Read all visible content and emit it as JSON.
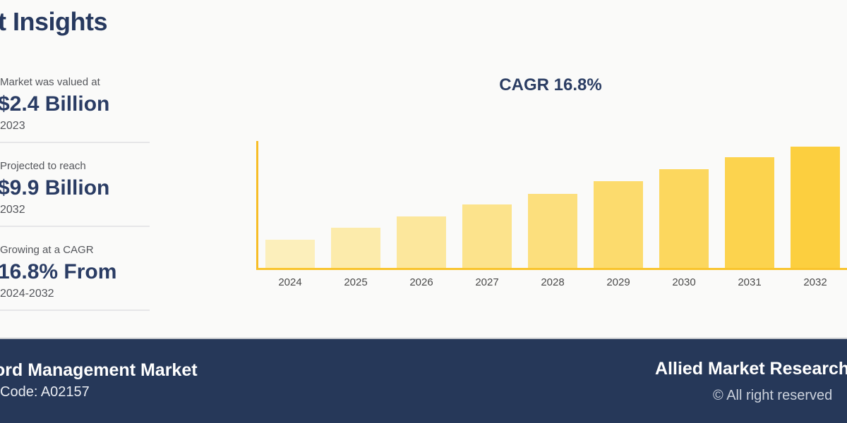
{
  "header": {
    "title": "t Insights"
  },
  "stats": [
    {
      "label": "Market was valued at",
      "value": "$2.4 Billion",
      "period": "2023"
    },
    {
      "label": "Projected to reach",
      "value": "$9.9 Billion",
      "period": "2032"
    },
    {
      "label": "Growing at a CAGR",
      "value": "16.8% From",
      "period": "2024-2032"
    }
  ],
  "chart_data": {
    "type": "bar",
    "title": "CAGR 16.8%",
    "categories": [
      "2024",
      "2025",
      "2026",
      "2027",
      "2028",
      "2029",
      "2030",
      "2031",
      "2032"
    ],
    "values": [
      40,
      57,
      73,
      90,
      105,
      123,
      140,
      157,
      172
    ],
    "values_unit": "relative bar height in px (no y-axis values shown in graphic)",
    "xlabel": "",
    "ylabel": "",
    "grid": false,
    "legend": false,
    "bar_colors": [
      "#FCEFBB",
      "#FCEBAB",
      "#FCE79C",
      "#FCE38C",
      "#FCDF7D",
      "#FCDB6D",
      "#FCD75E",
      "#FCD34E",
      "#FCCF3F"
    ],
    "axis_color": "#F7BD27"
  },
  "footer": {
    "market_name": "ord Management Market",
    "report_code": "Code: A02157",
    "brand": "Allied Market Research",
    "copyright": "© All right reserved"
  },
  "colors": {
    "background": "#FAFAF9",
    "navy_text": "#2A3C64",
    "gray_text": "#54565B",
    "footer_background": "#263859",
    "gold_axis": "#F7BD27"
  }
}
